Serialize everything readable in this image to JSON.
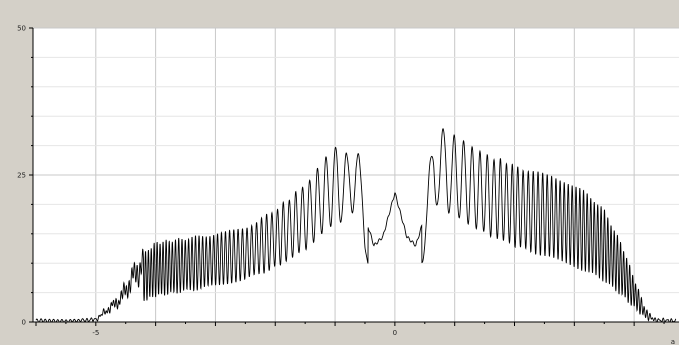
{
  "chart_data": {
    "type": "line",
    "title": "",
    "xlabel": "",
    "ylabel": "",
    "xlim": [
      -6.05,
      4.75
    ],
    "ylim": [
      0,
      50
    ],
    "x_ticks": [
      -5,
      0
    ],
    "x_tick_labels": [
      "-5",
      "0"
    ],
    "y_ticks": [
      0,
      25,
      50
    ],
    "y_tick_labels": [
      "0",
      "25",
      "50"
    ],
    "corner_label": "a",
    "grid": true,
    "colors": {
      "line": "#000000",
      "frame_background": "#d4d0c8",
      "plot_background": "#ffffff",
      "grid_major": "#c8c8c8",
      "grid_minor": "#e6e6e6"
    },
    "series": [
      {
        "x": [
          -6.0,
          -5.5,
          -5.0,
          -4.6,
          -4.3,
          -4.0,
          -3.5,
          -3.0,
          -2.5,
          -2.0,
          -1.7,
          -1.4,
          -1.2,
          -1.0,
          -0.8,
          -0.65,
          -0.5,
          -0.35,
          -0.2,
          0.0,
          0.2,
          0.35,
          0.5,
          0.65,
          0.8,
          1.0,
          1.2,
          1.4,
          1.6,
          1.8,
          2.0,
          2.3,
          2.6,
          2.9,
          3.2,
          3.5,
          3.8,
          4.05,
          4.2,
          4.35,
          4.7
        ],
        "values": [
          0.3,
          0.2,
          0.5,
          4.5,
          10.5,
          13.5,
          14.2,
          15.0,
          16.0,
          19.0,
          21.5,
          24.5,
          27.5,
          30.0,
          28.5,
          33.5,
          18.0,
          13.0,
          14.5,
          22.0,
          14.5,
          13.0,
          18.0,
          33.5,
          33.0,
          31.5,
          30.5,
          29.0,
          28.0,
          27.5,
          26.5,
          25.5,
          25.0,
          23.5,
          22.0,
          19.0,
          13.0,
          6.0,
          2.0,
          0.5,
          0.3
        ]
      }
    ]
  }
}
